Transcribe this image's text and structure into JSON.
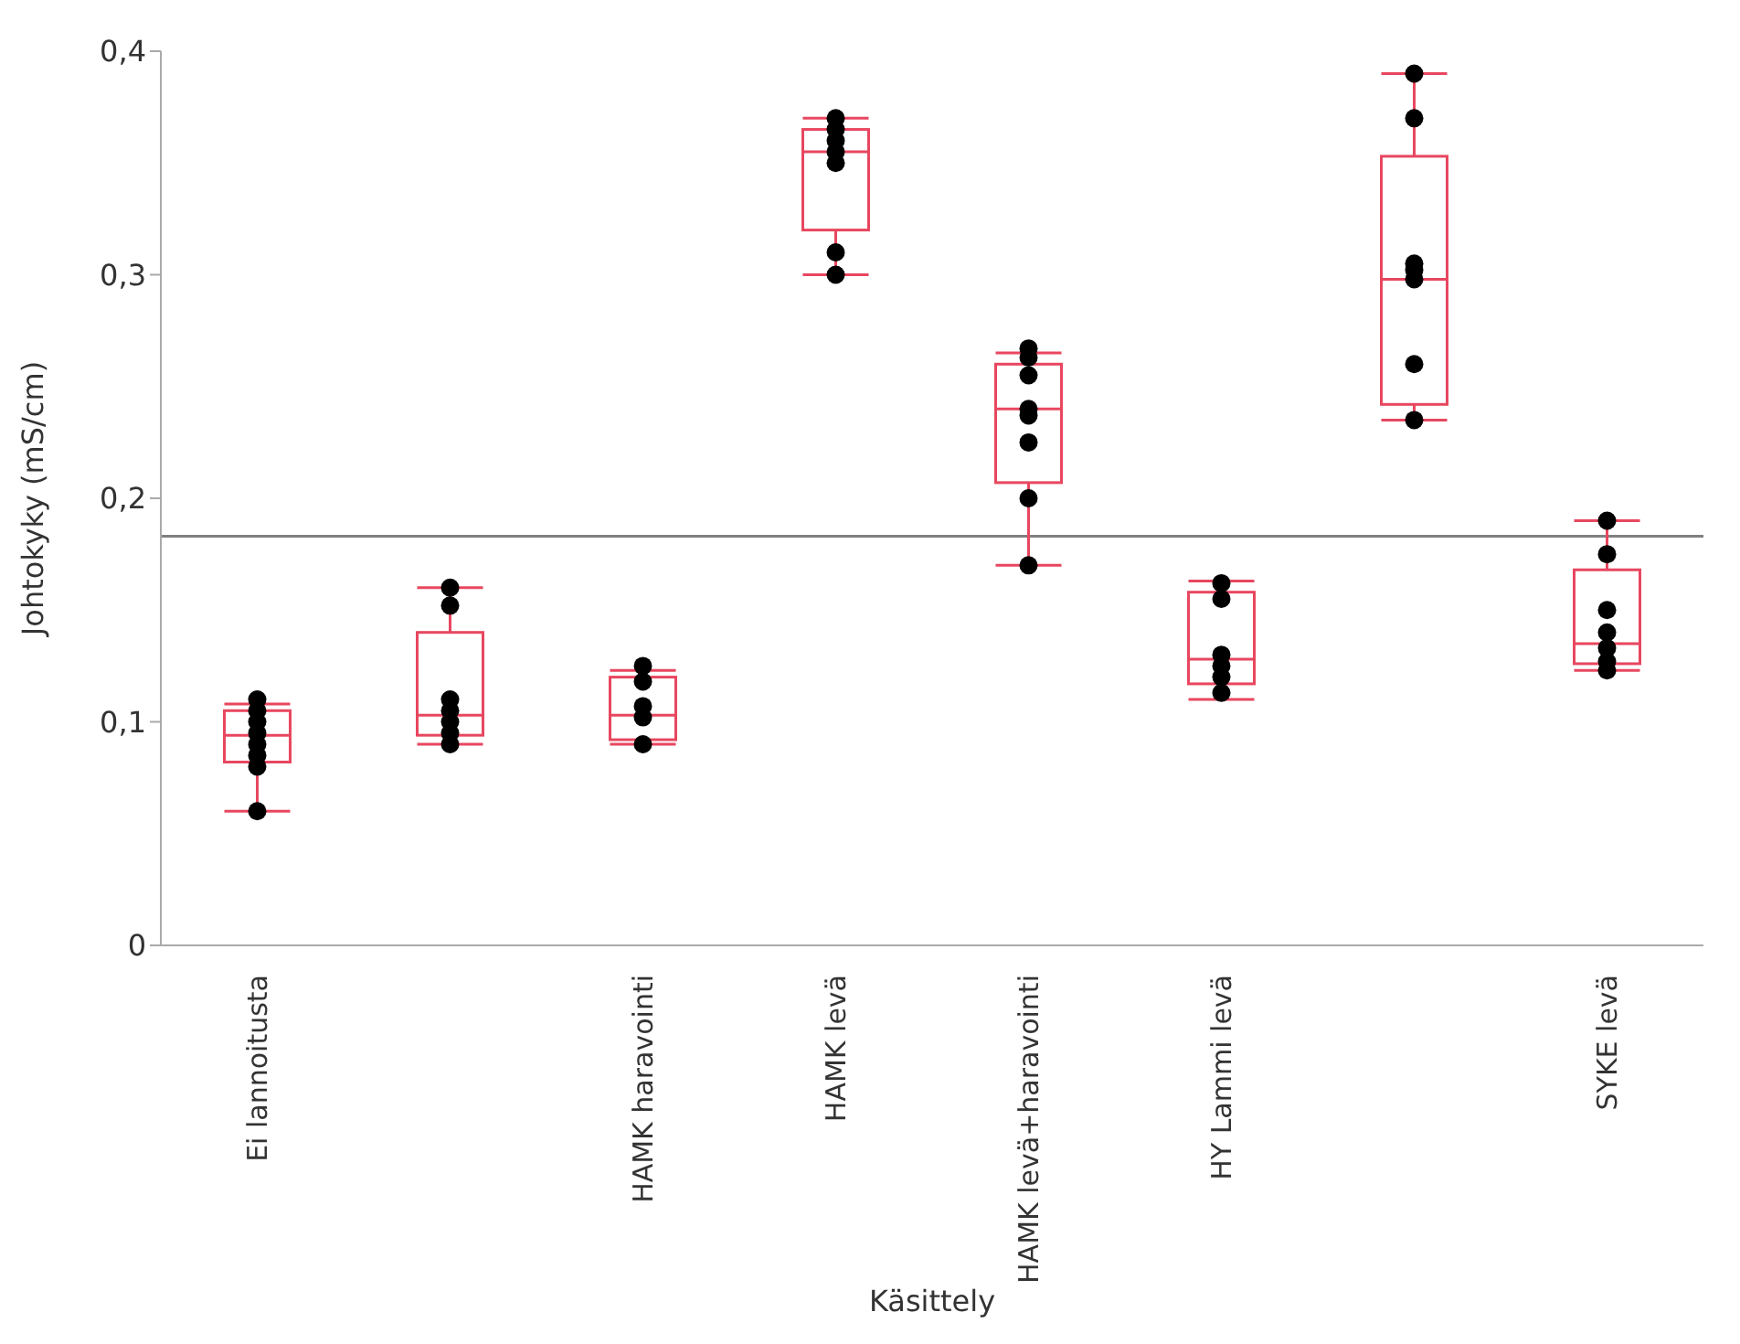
{
  "chart_data": {
    "type": "box",
    "ylabel": "Johtokyky (mS/cm)",
    "xlabel": "Käsittely",
    "categories": [
      "Ei lannoitusta",
      null,
      "HAMK haravointi",
      "HAMK levä",
      "HAMK levä+haravointi",
      "HY Lammi levä",
      null,
      "SYKE levä"
    ],
    "ylim": [
      0,
      0.4
    ],
    "yticks": [
      0,
      {
        "value": 0.1,
        "label": "0,1"
      },
      {
        "value": 0.2,
        "label": "0,2"
      },
      {
        "value": 0.3,
        "label": "0,3"
      },
      {
        "value": 0.4,
        "label": "0,4"
      }
    ],
    "grid": false,
    "series": [
      {
        "type": "box",
        "color": "#e8475f",
        "boxes": [
          {
            "low": 0.06,
            "q1": 0.082,
            "median": 0.094,
            "q3": 0.105,
            "high": 0.108
          },
          {
            "low": 0.09,
            "q1": 0.094,
            "median": 0.103,
            "q3": 0.14,
            "high": 0.16
          },
          {
            "low": 0.09,
            "q1": 0.092,
            "median": 0.103,
            "q3": 0.12,
            "high": 0.123
          },
          {
            "low": 0.3,
            "q1": 0.32,
            "median": 0.355,
            "q3": 0.365,
            "high": 0.37
          },
          {
            "low": 0.17,
            "q1": 0.207,
            "median": 0.24,
            "q3": 0.26,
            "high": 0.265
          },
          {
            "low": 0.11,
            "q1": 0.117,
            "median": 0.128,
            "q3": 0.158,
            "high": 0.163
          },
          {
            "low": 0.235,
            "q1": 0.242,
            "median": 0.298,
            "q3": 0.353,
            "high": 0.39
          },
          {
            "low": 0.123,
            "q1": 0.126,
            "median": 0.135,
            "q3": 0.168,
            "high": 0.19
          }
        ]
      },
      {
        "type": "scatter",
        "color": "#000000",
        "marker": "circle",
        "values": [
          0.11,
          0.16,
          0.125,
          0.37,
          0.267,
          0.162,
          0.39,
          0.19
        ]
      },
      {
        "type": "scatter",
        "color": "#000000",
        "marker": "circle",
        "values": [
          0.105,
          0.152,
          0.118,
          0.365,
          0.263,
          0.155,
          0.37,
          0.175
        ]
      },
      {
        "type": "scatter",
        "color": "#000000",
        "marker": "circle",
        "values": [
          0.1,
          0.11,
          0.107,
          0.36,
          0.255,
          0.13,
          0.305,
          0.15
        ]
      },
      {
        "type": "scatter",
        "color": "#000000",
        "marker": "circle",
        "values": [
          0.095,
          0.105,
          0.102,
          0.355,
          0.24,
          0.125,
          0.302,
          0.14
        ]
      },
      {
        "type": "scatter",
        "color": "#000000",
        "marker": "circle",
        "values": [
          0.09,
          0.1,
          0.09,
          0.35,
          0.237,
          0.12,
          0.298,
          0.133
        ]
      },
      {
        "type": "scatter",
        "color": "#000000",
        "marker": "circle",
        "values": [
          0.085,
          0.095,
          null,
          0.31,
          0.225,
          0.113,
          0.26,
          0.127
        ]
      },
      {
        "type": "scatter",
        "color": "#000000",
        "marker": "circle",
        "values": [
          0.08,
          0.09,
          null,
          0.3,
          0.2,
          null,
          0.235,
          0.123
        ]
      },
      {
        "type": "scatter",
        "color": "#000000",
        "marker": "circle",
        "values": [
          0.06,
          null,
          null,
          null,
          0.17,
          null,
          null,
          null
        ]
      }
    ],
    "ref_lines": [
      {
        "axis": "y",
        "value": 0.183,
        "color": "#808080"
      }
    ]
  }
}
